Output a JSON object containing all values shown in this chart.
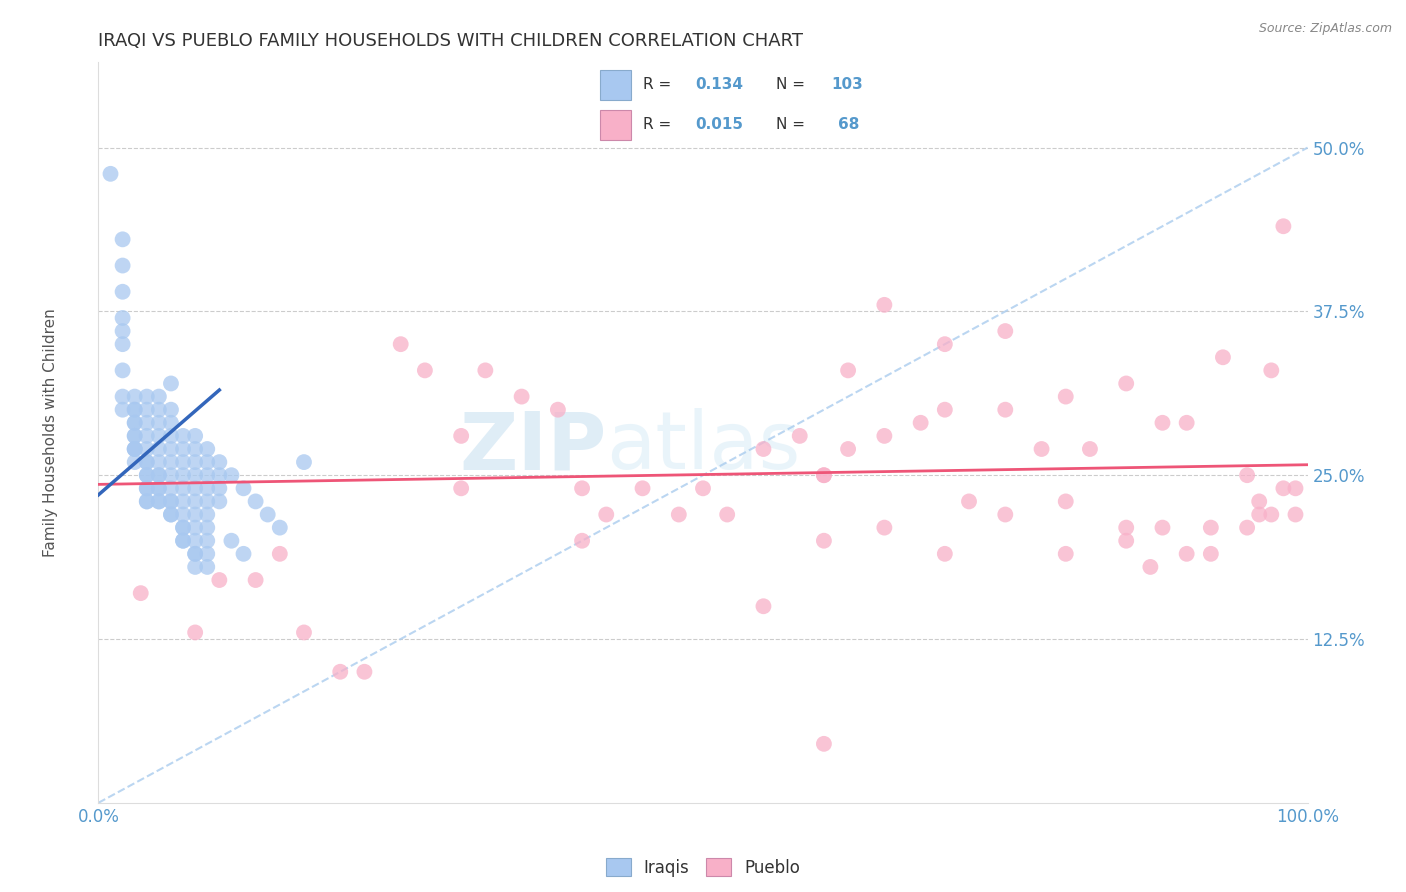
{
  "title": "IRAQI VS PUEBLO FAMILY HOUSEHOLDS WITH CHILDREN CORRELATION CHART",
  "source_text": "Source: ZipAtlas.com",
  "xlabel": "",
  "ylabel": "Family Households with Children",
  "xlim": [
    0.0,
    1.0
  ],
  "ylim": [
    0.0,
    0.565
  ],
  "x_ticks": [
    0.0,
    0.1,
    0.2,
    0.3,
    0.4,
    0.5,
    0.6,
    0.7,
    0.8,
    0.9,
    1.0
  ],
  "x_tick_labels": [
    "0.0%",
    "",
    "",
    "",
    "",
    "",
    "",
    "",
    "",
    "",
    "100.0%"
  ],
  "y_ticks": [
    0.125,
    0.25,
    0.375,
    0.5
  ],
  "y_tick_labels": [
    "12.5%",
    "25.0%",
    "37.5%",
    "50.0%"
  ],
  "iraqi_color": "#a8c8f0",
  "pueblo_color": "#f8b0c8",
  "iraqi_R": 0.134,
  "iraqi_N": 103,
  "pueblo_R": 0.015,
  "pueblo_N": 68,
  "legend_label_iraqi": "Iraqis",
  "legend_label_pueblo": "Pueblo",
  "watermark_zip": "ZIP",
  "watermark_atlas": "atlas",
  "iraqi_x": [
    0.01,
    0.02,
    0.02,
    0.02,
    0.02,
    0.02,
    0.02,
    0.02,
    0.02,
    0.02,
    0.03,
    0.03,
    0.03,
    0.03,
    0.03,
    0.03,
    0.03,
    0.03,
    0.03,
    0.03,
    0.03,
    0.04,
    0.04,
    0.04,
    0.04,
    0.04,
    0.04,
    0.04,
    0.04,
    0.04,
    0.04,
    0.04,
    0.04,
    0.04,
    0.05,
    0.05,
    0.05,
    0.05,
    0.05,
    0.05,
    0.05,
    0.05,
    0.05,
    0.05,
    0.05,
    0.05,
    0.06,
    0.06,
    0.06,
    0.06,
    0.06,
    0.06,
    0.06,
    0.06,
    0.06,
    0.06,
    0.06,
    0.06,
    0.07,
    0.07,
    0.07,
    0.07,
    0.07,
    0.07,
    0.07,
    0.07,
    0.07,
    0.07,
    0.07,
    0.08,
    0.08,
    0.08,
    0.08,
    0.08,
    0.08,
    0.08,
    0.08,
    0.08,
    0.08,
    0.08,
    0.08,
    0.09,
    0.09,
    0.09,
    0.09,
    0.09,
    0.09,
    0.09,
    0.09,
    0.09,
    0.09,
    0.1,
    0.1,
    0.1,
    0.1,
    0.11,
    0.11,
    0.12,
    0.12,
    0.13,
    0.14,
    0.15,
    0.17
  ],
  "iraqi_y": [
    0.48,
    0.43,
    0.41,
    0.39,
    0.37,
    0.36,
    0.35,
    0.33,
    0.31,
    0.3,
    0.31,
    0.3,
    0.3,
    0.29,
    0.29,
    0.28,
    0.28,
    0.27,
    0.27,
    0.27,
    0.26,
    0.31,
    0.3,
    0.29,
    0.28,
    0.27,
    0.26,
    0.26,
    0.25,
    0.25,
    0.24,
    0.24,
    0.23,
    0.23,
    0.31,
    0.3,
    0.29,
    0.28,
    0.27,
    0.26,
    0.25,
    0.25,
    0.24,
    0.24,
    0.23,
    0.23,
    0.32,
    0.3,
    0.29,
    0.28,
    0.27,
    0.26,
    0.25,
    0.24,
    0.23,
    0.23,
    0.22,
    0.22,
    0.28,
    0.27,
    0.26,
    0.25,
    0.24,
    0.23,
    0.22,
    0.21,
    0.21,
    0.2,
    0.2,
    0.28,
    0.27,
    0.26,
    0.25,
    0.24,
    0.23,
    0.22,
    0.21,
    0.2,
    0.19,
    0.19,
    0.18,
    0.27,
    0.26,
    0.25,
    0.24,
    0.23,
    0.22,
    0.21,
    0.2,
    0.19,
    0.18,
    0.26,
    0.25,
    0.24,
    0.23,
    0.25,
    0.2,
    0.24,
    0.19,
    0.23,
    0.22,
    0.21,
    0.26
  ],
  "pueblo_x": [
    0.035,
    0.08,
    0.1,
    0.13,
    0.15,
    0.17,
    0.2,
    0.22,
    0.25,
    0.27,
    0.3,
    0.3,
    0.32,
    0.35,
    0.38,
    0.4,
    0.4,
    0.42,
    0.45,
    0.48,
    0.5,
    0.52,
    0.55,
    0.55,
    0.58,
    0.6,
    0.6,
    0.62,
    0.62,
    0.65,
    0.65,
    0.68,
    0.7,
    0.7,
    0.72,
    0.75,
    0.75,
    0.78,
    0.8,
    0.8,
    0.82,
    0.85,
    0.85,
    0.88,
    0.88,
    0.9,
    0.9,
    0.92,
    0.93,
    0.95,
    0.95,
    0.96,
    0.97,
    0.97,
    0.98,
    0.98,
    0.99,
    0.99,
    0.6,
    0.65,
    0.7,
    0.75,
    0.8,
    0.85,
    0.87,
    0.92,
    0.96,
    0.6
  ],
  "pueblo_y": [
    0.16,
    0.13,
    0.17,
    0.17,
    0.19,
    0.13,
    0.1,
    0.1,
    0.35,
    0.33,
    0.28,
    0.24,
    0.33,
    0.31,
    0.3,
    0.24,
    0.2,
    0.22,
    0.24,
    0.22,
    0.24,
    0.22,
    0.27,
    0.15,
    0.28,
    0.25,
    0.25,
    0.27,
    0.33,
    0.28,
    0.38,
    0.29,
    0.3,
    0.35,
    0.23,
    0.3,
    0.36,
    0.27,
    0.31,
    0.23,
    0.27,
    0.32,
    0.21,
    0.29,
    0.21,
    0.19,
    0.29,
    0.21,
    0.34,
    0.25,
    0.21,
    0.23,
    0.33,
    0.22,
    0.44,
    0.24,
    0.22,
    0.24,
    0.2,
    0.21,
    0.19,
    0.22,
    0.19,
    0.2,
    0.18,
    0.19,
    0.22,
    0.045
  ],
  "pueblo_trend_start_x": 0.0,
  "pueblo_trend_start_y": 0.243,
  "pueblo_trend_end_x": 1.0,
  "pueblo_trend_end_y": 0.258,
  "iraqi_trend_start_x": 0.0,
  "iraqi_trend_start_y": 0.235,
  "iraqi_trend_end_x": 0.1,
  "iraqi_trend_end_y": 0.315,
  "gray_trend_start_x": 0.0,
  "gray_trend_start_y": 0.0,
  "gray_trend_end_x": 1.0,
  "gray_trend_end_y": 0.5,
  "background_color": "#ffffff",
  "grid_color": "#cccccc",
  "title_color": "#333333",
  "axis_color": "#555555",
  "tick_color_blue": "#5599cc",
  "trend_line_iraqi_color": "#3366bb",
  "trend_line_pueblo_color": "#ee5577",
  "trend_line_gray_color": "#aaccee"
}
